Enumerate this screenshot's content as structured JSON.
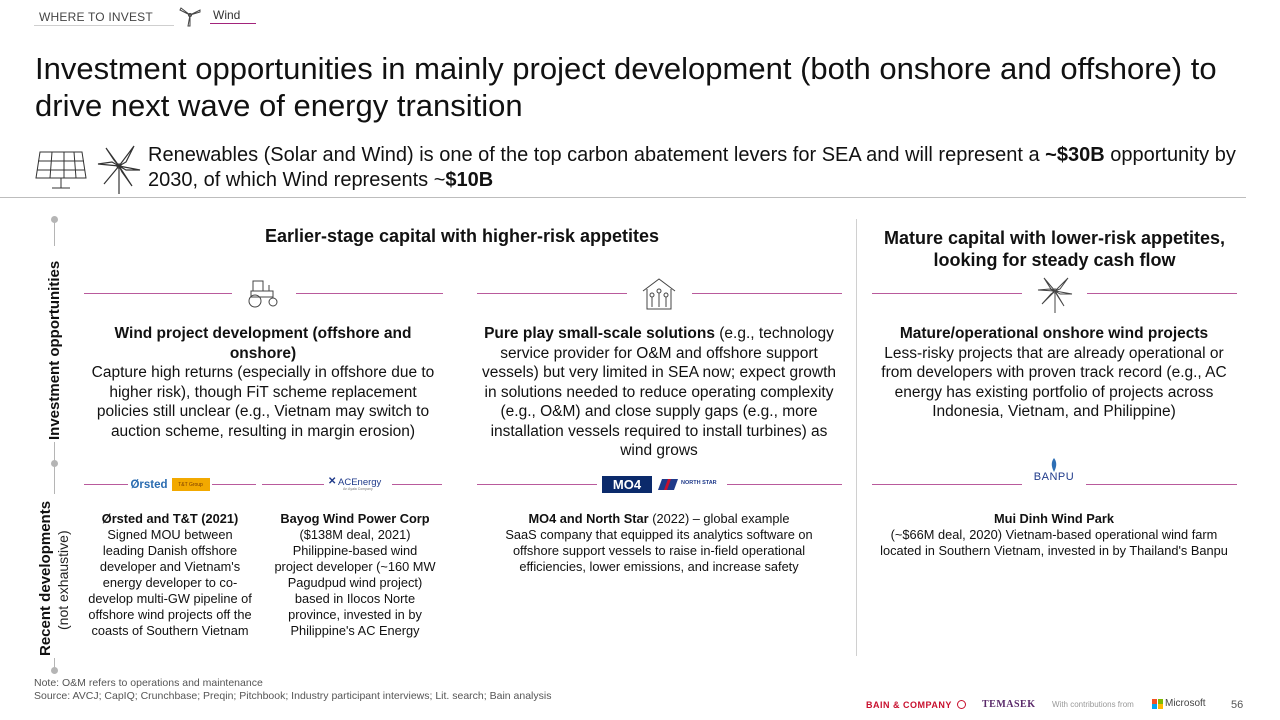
{
  "breadcrumb": {
    "section": "WHERE TO INVEST",
    "topic": "Wind"
  },
  "title": "Investment opportunities in mainly project development (both onshore and offshore) to drive next wave of energy transition",
  "subtitle": {
    "part1": "Renewables (Solar and Wind) is one of the top carbon abatement levers for SEA and will represent a ",
    "bold1": "~$30B",
    "part2": " opportunity by 2030, of which Wind represents ~",
    "bold2": "$10B"
  },
  "side_labels": {
    "investment": "Investment opportunities",
    "recent": "Recent developments",
    "not_exhaustive": "(not exhaustive)"
  },
  "sections": {
    "early": "Earlier-stage capital with higher-risk appetites",
    "mature": "Mature capital with lower-risk appetites, looking for steady cash flow"
  },
  "opportunities": [
    {
      "icon": "tractor-icon",
      "heading": "Wind project development (offshore and onshore)",
      "body": "Capture high returns (especially in offshore due to higher risk), though FiT scheme replacement policies still unclear (e.g., Vietnam may switch to auction scheme, resulting in margin erosion)"
    },
    {
      "icon": "network-house-icon",
      "heading": "Pure play small-scale solutions",
      "body": " (e.g., technology service provider for O&M and offshore support vessels) but very limited in SEA now; expect growth in solutions needed to reduce operating complexity (e.g., O&M) and close supply gaps (e.g., more installation vessels required to install turbines) as wind grows"
    },
    {
      "icon": "wind-turbine-icon",
      "heading": "Mature/operational onshore wind projects",
      "body": "Less-risky projects that are already operational or from developers with proven track record (e.g., AC energy has existing portfolio of projects across Indonesia, Vietnam, and Philippine)"
    }
  ],
  "logos": {
    "orsted": "Ørsted",
    "tt": "T&T Group",
    "acenergy": "ACEnergy",
    "acenergy_sub": "An Ayala Company",
    "mo4": "MO4",
    "northstar": "NORTH STAR",
    "banpu": "BANPU"
  },
  "developments": [
    {
      "heading": "Ørsted and T&T (2021)",
      "body": "Signed MOU between leading Danish offshore developer and Vietnam's energy developer to co-develop multi-GW pipeline of offshore wind projects off the coasts of Southern Vietnam"
    },
    {
      "heading": "Bayog Wind Power Corp",
      "body": "($138M deal, 2021) Philippine-based wind project developer (~160 MW Pagudpud wind project) based in Ilocos Norte province, invested in by Philippine's AC Energy"
    },
    {
      "heading": "MO4 and North Star",
      "heading_rest": " (2022) – global example",
      "body": "SaaS company that equipped its analytics software on offshore support vessels to raise in-field operational efficiencies, lower emissions, and increase safety"
    },
    {
      "heading": "Mui Dinh Wind Park",
      "body": "(~$66M deal, 2020) Vietnam-based operational wind farm located in Southern Vietnam, invested in by Thailand's Banpu"
    }
  ],
  "notes": {
    "note": "Note: O&M refers to operations and maintenance",
    "source": "Source: AVCJ; CapIQ; Crunchbase; Preqin; Pitchbook; Industry participant interviews; Lit. search; Bain analysis"
  },
  "footer": {
    "bain": "BAIN & COMPANY",
    "temasek": "TEMASEK",
    "with": "With contributions from",
    "microsoft": "Microsoft",
    "page": "56"
  },
  "colors": {
    "accent": "#a2237b",
    "orsted": "#2b6cb0",
    "tt": "#f2a900",
    "mo4": "#0b2a6b",
    "northstar": "#c8102e",
    "banpu": "#1f3a8a"
  }
}
